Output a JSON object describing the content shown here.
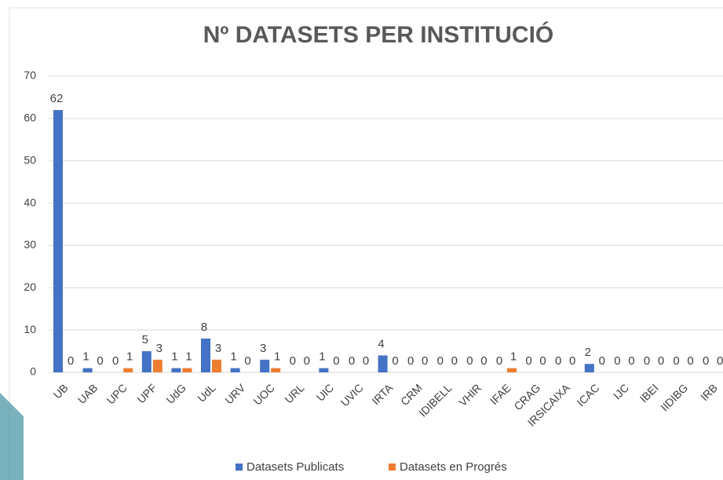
{
  "chart_data": {
    "type": "bar",
    "title": "Nº DATASETS PER INSTITUCIÓ",
    "categories": [
      "UB",
      "UAB",
      "UPC",
      "UPF",
      "UdG",
      "UdL",
      "URV",
      "UOC",
      "URL",
      "UIC",
      "UVIC",
      "IRTA",
      "CRM",
      "IDIBELL",
      "VHIR",
      "IFAE",
      "CRAG",
      "IRSICAIXA",
      "ICAC",
      "IJC",
      "IBEI",
      "IIDIBG",
      "IRB"
    ],
    "series": [
      {
        "name": "Datasets Publicats",
        "color": "#4472c4",
        "values": [
          62,
          1,
          0,
          5,
          1,
          8,
          1,
          3,
          0,
          1,
          0,
          4,
          0,
          0,
          0,
          0,
          0,
          0,
          2,
          0,
          0,
          0,
          0
        ]
      },
      {
        "name": "Datasets en Progrés",
        "color": "#ed7d31",
        "values": [
          0,
          0,
          1,
          3,
          1,
          3,
          0,
          1,
          0,
          0,
          0,
          0,
          0,
          0,
          0,
          1,
          0,
          0,
          0,
          0,
          0,
          0,
          0
        ]
      }
    ],
    "ylim": [
      0,
      70
    ],
    "yticks": [
      0,
      10,
      20,
      30,
      40,
      50,
      60,
      70
    ],
    "grid": true,
    "legend": "bottom"
  }
}
